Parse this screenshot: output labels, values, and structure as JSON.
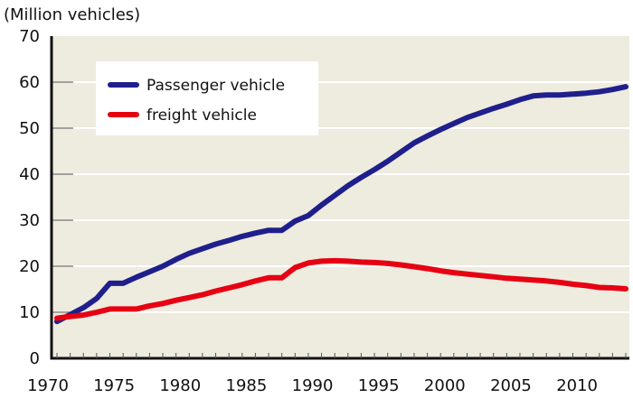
{
  "chart_data": {
    "type": "line",
    "title": "",
    "ylabel": "(Million vehicles)",
    "xlabel": "",
    "xlim": [
      1970,
      2013
    ],
    "ylim": [
      0,
      70
    ],
    "yticks": [
      0,
      10,
      20,
      30,
      40,
      50,
      60,
      70
    ],
    "ytick_labels": [
      "0",
      "10",
      "20",
      "30",
      "40",
      "50",
      "60",
      "70"
    ],
    "xticks": [
      1970,
      1975,
      1980,
      1985,
      1990,
      1995,
      2000,
      2005,
      2010
    ],
    "xtick_labels": [
      "1970",
      "1975",
      "1980",
      "1985",
      "1990",
      "1995",
      "2000",
      "2005",
      "2010"
    ],
    "minor_xticks_every_year": true,
    "grid": "horizontal",
    "legend_position": "top-left",
    "plot_background": "#eeebdf",
    "gridline_color": "#ffffff",
    "series": [
      {
        "name": "Passenger vehicle",
        "color": "#1f1f8c",
        "x": [
          1970,
          1971,
          1972,
          1973,
          1974,
          1975,
          1976,
          1977,
          1978,
          1979,
          1980,
          1981,
          1982,
          1983,
          1984,
          1985,
          1986,
          1987,
          1988,
          1989,
          1990,
          1991,
          1992,
          1993,
          1994,
          1995,
          1996,
          1997,
          1998,
          1999,
          2000,
          2001,
          2002,
          2003,
          2004,
          2005,
          2006,
          2007,
          2008,
          2009,
          2010,
          2011,
          2012,
          2013
        ],
        "values": [
          8.0,
          9.5,
          11.0,
          13.0,
          16.3,
          16.3,
          17.6,
          18.8,
          20.0,
          21.5,
          22.8,
          23.8,
          24.8,
          25.6,
          26.5,
          27.2,
          27.8,
          27.8,
          29.8,
          31.0,
          33.3,
          35.4,
          37.5,
          39.3,
          41.0,
          42.8,
          44.8,
          46.8,
          48.3,
          49.7,
          51.0,
          52.3,
          53.3,
          54.3,
          55.2,
          56.2,
          57.0,
          57.2,
          57.2,
          57.4,
          57.6,
          57.9,
          58.4,
          59.0
        ]
      },
      {
        "name": "freight vehicle",
        "color": "#e60012",
        "x": [
          1970,
          1971,
          1972,
          1973,
          1974,
          1975,
          1976,
          1977,
          1978,
          1979,
          1980,
          1981,
          1982,
          1983,
          1984,
          1985,
          1986,
          1987,
          1988,
          1989,
          1990,
          1991,
          1992,
          1993,
          1994,
          1995,
          1996,
          1997,
          1998,
          1999,
          2000,
          2001,
          2002,
          2003,
          2004,
          2005,
          2006,
          2007,
          2008,
          2009,
          2010,
          2011,
          2012,
          2013
        ],
        "values": [
          8.7,
          9.1,
          9.4,
          10.0,
          10.7,
          10.7,
          10.7,
          11.4,
          11.9,
          12.6,
          13.2,
          13.8,
          14.6,
          15.3,
          16.0,
          16.8,
          17.5,
          17.5,
          19.7,
          20.7,
          21.1,
          21.2,
          21.1,
          20.9,
          20.8,
          20.6,
          20.3,
          19.9,
          19.5,
          19.0,
          18.6,
          18.3,
          18.0,
          17.7,
          17.4,
          17.2,
          17.0,
          16.8,
          16.5,
          16.1,
          15.8,
          15.4,
          15.3,
          15.1
        ]
      }
    ]
  }
}
